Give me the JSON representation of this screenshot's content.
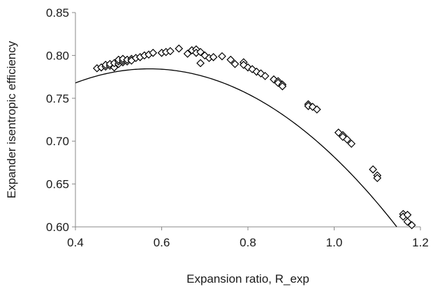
{
  "chart_data": {
    "type": "scatter",
    "xlabel": "Expansion ratio, R_exp",
    "ylabel": "Expander isentropic efficiency",
    "xlim": [
      0.4,
      1.2
    ],
    "ylim": [
      0.6,
      0.85
    ],
    "x_ticks": [
      "0.4",
      "0.6",
      "0.8",
      "1.0",
      "1.2"
    ],
    "y_ticks": [
      "0.60",
      "0.65",
      "0.70",
      "0.75",
      "0.80",
      "0.85"
    ],
    "grid": false,
    "legend": "none",
    "marker": "diamond",
    "series": [
      {
        "marker": "diamond",
        "color": "#000000",
        "x": [
          0.45,
          0.46,
          0.47,
          0.47,
          0.48,
          0.48,
          0.49,
          0.49,
          0.5,
          0.5,
          0.5,
          0.51,
          0.51,
          0.51,
          0.52,
          0.52,
          0.53,
          0.53,
          0.54,
          0.55,
          0.56,
          0.57,
          0.58,
          0.6,
          0.61,
          0.62,
          0.64,
          0.66,
          0.67,
          0.68,
          0.68,
          0.69,
          0.69,
          0.7,
          0.71,
          0.72,
          0.74,
          0.76,
          0.77,
          0.79,
          0.79,
          0.8,
          0.81,
          0.82,
          0.83,
          0.84,
          0.86,
          0.87,
          0.87,
          0.88,
          0.88,
          0.94,
          0.94,
          0.95,
          0.96,
          1.01,
          1.02,
          1.02,
          1.03,
          1.04,
          1.09,
          1.1,
          1.1,
          1.16,
          1.16,
          1.17,
          1.17,
          1.18
        ],
        "y": [
          0.785,
          0.786,
          0.787,
          0.789,
          0.788,
          0.79,
          0.786,
          0.791,
          0.79,
          0.793,
          0.795,
          0.792,
          0.794,
          0.796,
          0.793,
          0.795,
          0.796,
          0.794,
          0.797,
          0.798,
          0.8,
          0.801,
          0.803,
          0.803,
          0.804,
          0.805,
          0.808,
          0.802,
          0.806,
          0.807,
          0.803,
          0.804,
          0.791,
          0.8,
          0.797,
          0.798,
          0.799,
          0.795,
          0.79,
          0.792,
          0.789,
          0.786,
          0.784,
          0.781,
          0.779,
          0.776,
          0.772,
          0.77,
          0.768,
          0.766,
          0.764,
          0.743,
          0.741,
          0.74,
          0.737,
          0.71,
          0.707,
          0.705,
          0.702,
          0.697,
          0.667,
          0.66,
          0.657,
          0.615,
          0.612,
          0.614,
          0.606,
          0.602
        ]
      }
    ],
    "trendline": {
      "type": "quadratic",
      "coefficients": [
        0.6015,
        0.64,
        -0.56
      ]
    }
  }
}
